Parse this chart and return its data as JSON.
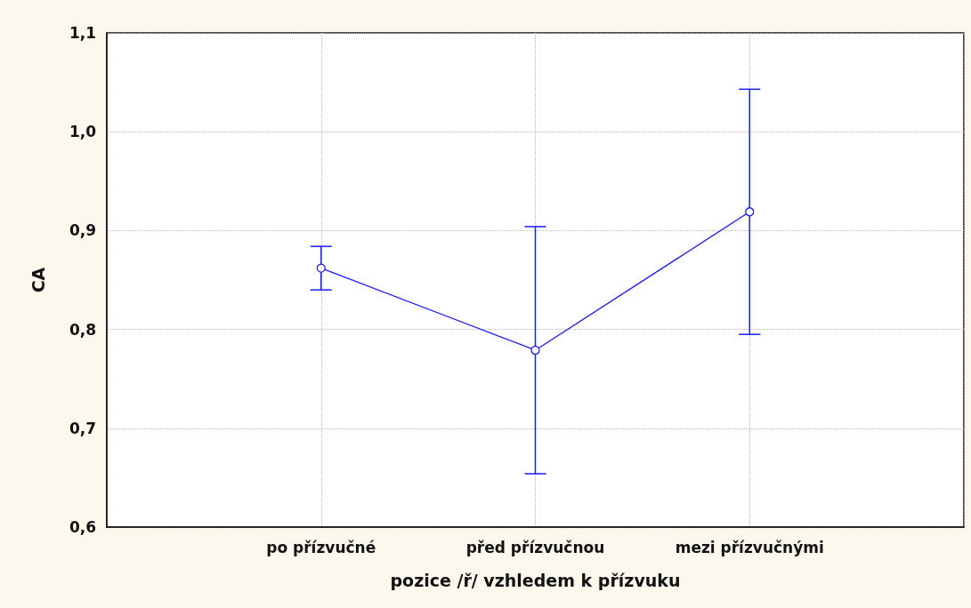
{
  "chart_data": {
    "type": "line",
    "xlabel": "pozice /ř/ vzhledem k přízvuku",
    "ylabel": "CA",
    "categories": [
      "po přízvučné",
      "před přízvučnou",
      "mezi přízvučnými"
    ],
    "series": [
      {
        "color": "#1a1aff",
        "values": [
          0.862,
          0.779,
          0.919
        ],
        "errors": [
          0.022,
          0.125,
          0.124
        ]
      }
    ],
    "ylim": [
      0.6,
      1.1
    ],
    "yticks": [
      {
        "value": 0.6,
        "label": "0,6"
      },
      {
        "value": 0.7,
        "label": "0,7"
      },
      {
        "value": 0.8,
        "label": "0,8"
      },
      {
        "value": 0.9,
        "label": "0,9"
      },
      {
        "value": 1.0,
        "label": "1,0"
      },
      {
        "value": 1.1,
        "label": "1,1"
      }
    ],
    "grid": true,
    "marker": "circle",
    "line_style": "solid"
  }
}
